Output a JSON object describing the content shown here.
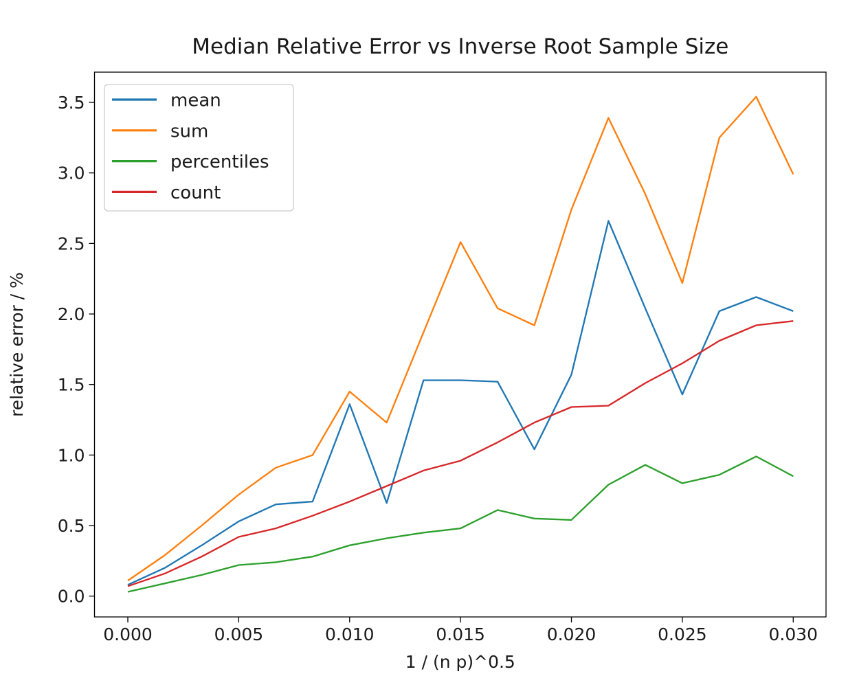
{
  "figure": {
    "background_color": "#ffffff",
    "text_color": "#1a1a1a",
    "spine_color": "#000000",
    "legend_border_color": "#cccccc",
    "legend_background": "#ffffff"
  },
  "chart_data": {
    "type": "line",
    "title": "Median Relative Error vs Inverse Root Sample Size",
    "xlabel": "1 / (n p)^0.5",
    "ylabel": "relative error / %",
    "grid": false,
    "legend_position": "upper left",
    "xlim": [
      -0.001503,
      0.031478
    ],
    "ylim": [
      -0.1476,
      3.7144
    ],
    "x_ticks": [
      0.0,
      0.005,
      0.01,
      0.015,
      0.02,
      0.025,
      0.03
    ],
    "x_tick_labels": [
      "0.000",
      "0.005",
      "0.010",
      "0.015",
      "0.020",
      "0.025",
      "0.030"
    ],
    "y_ticks": [
      0.0,
      0.5,
      1.0,
      1.5,
      2.0,
      2.5,
      3.0,
      3.5
    ],
    "y_tick_labels": [
      "0.0",
      "0.5",
      "1.0",
      "1.5",
      "2.0",
      "2.5",
      "3.0",
      "3.5"
    ],
    "x": [
      0.0,
      0.00167,
      0.00333,
      0.005,
      0.00667,
      0.00833,
      0.01,
      0.01167,
      0.01333,
      0.015,
      0.01667,
      0.01833,
      0.02,
      0.02167,
      0.02333,
      0.025,
      0.02667,
      0.02833,
      0.03
    ],
    "series": [
      {
        "name": "mean",
        "color": "#1f77b4",
        "values": [
          0.08,
          0.2,
          0.36,
          0.53,
          0.65,
          0.67,
          1.36,
          0.66,
          1.53,
          1.53,
          1.52,
          1.04,
          1.57,
          2.66,
          2.04,
          1.43,
          2.02,
          2.12,
          2.02
        ]
      },
      {
        "name": "sum",
        "color": "#ff7f0e",
        "values": [
          0.11,
          0.29,
          0.5,
          0.72,
          0.91,
          1.0,
          1.45,
          1.23,
          1.87,
          2.51,
          2.04,
          1.92,
          2.74,
          3.39,
          2.85,
          2.22,
          3.25,
          3.54,
          2.99
        ]
      },
      {
        "name": "percentiles",
        "color": "#2ca02c",
        "values": [
          0.03,
          0.09,
          0.15,
          0.22,
          0.24,
          0.28,
          0.36,
          0.41,
          0.45,
          0.48,
          0.61,
          0.55,
          0.54,
          0.79,
          0.93,
          0.8,
          0.86,
          0.99,
          0.85
        ]
      },
      {
        "name": "count",
        "color": "#d62728",
        "values": [
          0.07,
          0.16,
          0.28,
          0.42,
          0.48,
          0.57,
          0.67,
          0.78,
          0.89,
          0.96,
          1.09,
          1.23,
          1.34,
          1.35,
          1.51,
          1.65,
          1.81,
          1.92,
          1.95
        ]
      }
    ]
  }
}
